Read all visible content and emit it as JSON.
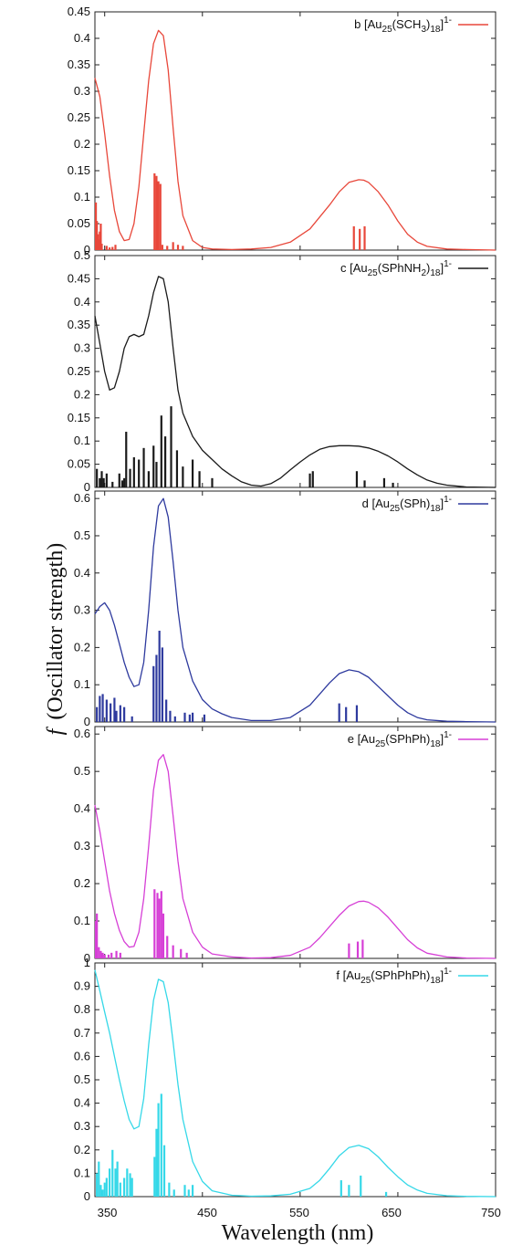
{
  "figure": {
    "ylabel_f": "f",
    "ylabel_rest": "(Oscillator strength)",
    "xlabel": "Wavelength (nm)",
    "x_ticks": [
      "350",
      "450",
      "550",
      "650",
      "750"
    ]
  },
  "chart_data": [
    {
      "type": "line",
      "panel": "b",
      "legend": {
        "letter": "b",
        "formula": [
          [
            "[Au",
            ""
          ],
          [
            "25",
            "sub"
          ],
          [
            "(SCH",
            ""
          ],
          [
            "3",
            "sub"
          ],
          [
            ")",
            ""
          ],
          [
            "18",
            "sub"
          ],
          [
            "]",
            ""
          ],
          [
            "1-",
            "sup"
          ]
        ]
      },
      "color": "#e8473a",
      "xlim": [
        340,
        750
      ],
      "ylim": [
        0,
        0.45
      ],
      "y_ticks": [
        "0",
        "0.05",
        "0.1",
        "0.15",
        "0.2",
        "0.25",
        "0.3",
        "0.35",
        "0.4",
        "0.45"
      ],
      "y_tick_values": [
        0,
        0.05,
        0.1,
        0.15,
        0.2,
        0.25,
        0.3,
        0.35,
        0.4,
        0.45
      ],
      "curve": {
        "x": [
          340,
          345,
          350,
          355,
          360,
          365,
          370,
          375,
          380,
          385,
          390,
          395,
          400,
          405,
          410,
          415,
          420,
          425,
          430,
          440,
          450,
          460,
          480,
          500,
          520,
          540,
          560,
          580,
          590,
          600,
          610,
          615,
          620,
          630,
          640,
          650,
          660,
          670,
          680,
          700,
          720,
          750
        ],
        "y": [
          0.325,
          0.29,
          0.22,
          0.14,
          0.075,
          0.035,
          0.018,
          0.02,
          0.05,
          0.12,
          0.22,
          0.32,
          0.39,
          0.415,
          0.405,
          0.34,
          0.23,
          0.13,
          0.065,
          0.018,
          0.005,
          0.002,
          0.001,
          0.002,
          0.005,
          0.015,
          0.04,
          0.085,
          0.11,
          0.128,
          0.133,
          0.132,
          0.128,
          0.11,
          0.085,
          0.055,
          0.03,
          0.015,
          0.007,
          0.002,
          0.001,
          0
        ]
      },
      "sticks": {
        "x": [
          341,
          342,
          343,
          344,
          345,
          346,
          347,
          352,
          355,
          358,
          361,
          401,
          403,
          405,
          407,
          409,
          414,
          420,
          425,
          430,
          605,
          611,
          616
        ],
        "y": [
          0.09,
          0.055,
          0.03,
          0.02,
          0.035,
          0.05,
          0.012,
          0.008,
          0.005,
          0.006,
          0.01,
          0.145,
          0.14,
          0.13,
          0.125,
          0.01,
          0.008,
          0.015,
          0.01,
          0.008,
          0.045,
          0.04,
          0.045
        ]
      }
    },
    {
      "type": "line",
      "panel": "c",
      "legend": {
        "letter": "c",
        "formula": [
          [
            "[Au",
            ""
          ],
          [
            "25",
            "sub"
          ],
          [
            "(SPhNH",
            ""
          ],
          [
            "2",
            "sub"
          ],
          [
            ")",
            ""
          ],
          [
            "18",
            "sub"
          ],
          [
            "]",
            ""
          ],
          [
            "1-",
            "sup"
          ]
        ]
      },
      "color": "#1a1a1a",
      "xlim": [
        340,
        750
      ],
      "ylim": [
        0,
        0.5
      ],
      "y_ticks": [
        "0",
        "0.05",
        "0.1",
        "0.15",
        "0.2",
        "0.25",
        "0.3",
        "0.35",
        "0.4",
        "0.45",
        "0.5"
      ],
      "y_tick_values": [
        0,
        0.05,
        0.1,
        0.15,
        0.2,
        0.25,
        0.3,
        0.35,
        0.4,
        0.45,
        0.5
      ],
      "curve": {
        "x": [
          340,
          345,
          350,
          355,
          360,
          365,
          370,
          375,
          380,
          385,
          390,
          395,
          400,
          405,
          410,
          415,
          420,
          425,
          430,
          440,
          450,
          460,
          470,
          480,
          490,
          500,
          510,
          520,
          530,
          540,
          550,
          560,
          570,
          580,
          590,
          600,
          610,
          620,
          630,
          640,
          650,
          660,
          670,
          680,
          690,
          700,
          720,
          750
        ],
        "y": [
          0.37,
          0.31,
          0.25,
          0.21,
          0.215,
          0.25,
          0.3,
          0.325,
          0.33,
          0.325,
          0.33,
          0.37,
          0.42,
          0.455,
          0.45,
          0.4,
          0.3,
          0.21,
          0.16,
          0.11,
          0.08,
          0.06,
          0.04,
          0.025,
          0.012,
          0.005,
          0.003,
          0.008,
          0.02,
          0.038,
          0.055,
          0.07,
          0.082,
          0.088,
          0.09,
          0.09,
          0.089,
          0.085,
          0.078,
          0.068,
          0.055,
          0.04,
          0.027,
          0.016,
          0.009,
          0.005,
          0.001,
          0
        ]
      },
      "sticks": {
        "x": [
          342,
          345,
          347,
          349,
          352,
          358,
          365,
          368,
          370,
          372,
          376,
          380,
          385,
          390,
          395,
          400,
          403,
          408,
          412,
          418,
          424,
          430,
          440,
          447,
          460,
          560,
          563,
          608,
          616,
          636,
          645
        ],
        "y": [
          0.04,
          0.02,
          0.035,
          0.02,
          0.03,
          0.012,
          0.03,
          0.015,
          0.02,
          0.12,
          0.04,
          0.065,
          0.06,
          0.085,
          0.035,
          0.09,
          0.055,
          0.155,
          0.11,
          0.175,
          0.08,
          0.045,
          0.06,
          0.035,
          0.02,
          0.03,
          0.035,
          0.035,
          0.015,
          0.02,
          0.01
        ]
      }
    },
    {
      "type": "line",
      "panel": "d",
      "legend": {
        "letter": "d",
        "formula": [
          [
            "[Au",
            ""
          ],
          [
            "25",
            "sub"
          ],
          [
            "(SPh)",
            ""
          ],
          [
            "18",
            "sub"
          ],
          [
            "]",
            ""
          ],
          [
            "1-",
            "sup"
          ]
        ]
      },
      "color": "#2e3a9e",
      "xlim": [
        340,
        750
      ],
      "ylim": [
        0,
        0.62
      ],
      "y_ticks": [
        "0",
        "0.1",
        "0.2",
        "0.3",
        "0.4",
        "0.5",
        "0.6"
      ],
      "y_tick_values": [
        0,
        0.1,
        0.2,
        0.3,
        0.4,
        0.5,
        0.6
      ],
      "curve": {
        "x": [
          340,
          345,
          350,
          355,
          360,
          365,
          370,
          375,
          380,
          385,
          390,
          395,
          400,
          405,
          410,
          415,
          420,
          425,
          430,
          440,
          450,
          460,
          470,
          480,
          500,
          520,
          540,
          560,
          570,
          580,
          590,
          600,
          610,
          620,
          630,
          640,
          650,
          660,
          670,
          680,
          700,
          720,
          750
        ],
        "y": [
          0.29,
          0.31,
          0.32,
          0.3,
          0.26,
          0.21,
          0.16,
          0.12,
          0.095,
          0.1,
          0.16,
          0.3,
          0.47,
          0.58,
          0.6,
          0.55,
          0.43,
          0.3,
          0.2,
          0.11,
          0.06,
          0.035,
          0.022,
          0.012,
          0.004,
          0.004,
          0.012,
          0.045,
          0.075,
          0.105,
          0.13,
          0.14,
          0.135,
          0.12,
          0.095,
          0.07,
          0.045,
          0.025,
          0.012,
          0.006,
          0.002,
          0.001,
          0
        ]
      },
      "sticks": {
        "x": [
          342,
          345,
          348,
          352,
          356,
          360,
          362,
          366,
          370,
          378,
          400,
          403,
          406,
          409,
          413,
          417,
          422,
          432,
          437,
          440,
          452,
          590,
          597,
          608
        ],
        "y": [
          0.04,
          0.07,
          0.075,
          0.06,
          0.05,
          0.065,
          0.03,
          0.045,
          0.04,
          0.015,
          0.15,
          0.18,
          0.245,
          0.2,
          0.06,
          0.03,
          0.015,
          0.025,
          0.02,
          0.025,
          0.02,
          0.05,
          0.04,
          0.045
        ]
      }
    },
    {
      "type": "line",
      "panel": "e",
      "legend": {
        "letter": "e",
        "formula": [
          [
            "[Au",
            ""
          ],
          [
            "25",
            "sub"
          ],
          [
            "(SPhPh)",
            ""
          ],
          [
            "18",
            "sub"
          ],
          [
            "]",
            ""
          ],
          [
            "1-",
            "sup"
          ]
        ]
      },
      "color": "#d63fd6",
      "xlim": [
        340,
        750
      ],
      "ylim": [
        0,
        0.62
      ],
      "y_ticks": [
        "0",
        "0.1",
        "0.2",
        "0.3",
        "0.4",
        "0.5",
        "0.6"
      ],
      "y_tick_values": [
        0,
        0.1,
        0.2,
        0.3,
        0.4,
        0.5,
        0.6
      ],
      "curve": {
        "x": [
          340,
          345,
          350,
          355,
          360,
          365,
          370,
          375,
          380,
          385,
          390,
          395,
          400,
          405,
          410,
          415,
          420,
          425,
          430,
          440,
          450,
          460,
          480,
          500,
          520,
          540,
          560,
          570,
          580,
          590,
          600,
          610,
          615,
          620,
          630,
          640,
          650,
          660,
          670,
          680,
          700,
          720,
          750
        ],
        "y": [
          0.41,
          0.34,
          0.26,
          0.18,
          0.12,
          0.075,
          0.045,
          0.03,
          0.032,
          0.07,
          0.16,
          0.3,
          0.45,
          0.53,
          0.545,
          0.5,
          0.38,
          0.26,
          0.16,
          0.07,
          0.03,
          0.012,
          0.004,
          0.001,
          0.002,
          0.008,
          0.03,
          0.055,
          0.085,
          0.115,
          0.14,
          0.152,
          0.153,
          0.15,
          0.135,
          0.11,
          0.08,
          0.05,
          0.028,
          0.014,
          0.004,
          0.001,
          0
        ]
      },
      "sticks": {
        "x": [
          341,
          342,
          344,
          346,
          348,
          350,
          354,
          357,
          362,
          366,
          401,
          404,
          406,
          408,
          410,
          414,
          420,
          428,
          434,
          600,
          609,
          614
        ],
        "y": [
          0.1,
          0.12,
          0.03,
          0.02,
          0.015,
          0.01,
          0.01,
          0.015,
          0.02,
          0.015,
          0.185,
          0.175,
          0.16,
          0.18,
          0.12,
          0.06,
          0.035,
          0.025,
          0.015,
          0.04,
          0.045,
          0.05
        ]
      }
    },
    {
      "type": "line",
      "panel": "f",
      "legend": {
        "letter": "f",
        "formula": [
          [
            "[Au",
            ""
          ],
          [
            "25",
            "sub"
          ],
          [
            "(SPhPhPh)",
            ""
          ],
          [
            "18",
            "sub"
          ],
          [
            "]",
            ""
          ],
          [
            "1-",
            "sup"
          ]
        ]
      },
      "color": "#35d8e8",
      "xlim": [
        340,
        750
      ],
      "ylim": [
        0,
        1.0
      ],
      "y_ticks": [
        "0",
        "0.1",
        "0.2",
        "0.3",
        "0.4",
        "0.5",
        "0.6",
        "0.7",
        "0.8",
        "0.9",
        "1"
      ],
      "y_tick_values": [
        0,
        0.1,
        0.2,
        0.3,
        0.4,
        0.5,
        0.6,
        0.7,
        0.8,
        0.9,
        1.0
      ],
      "curve": {
        "x": [
          340,
          345,
          350,
          355,
          360,
          365,
          370,
          375,
          380,
          385,
          390,
          395,
          400,
          405,
          410,
          415,
          420,
          425,
          430,
          440,
          450,
          460,
          480,
          500,
          520,
          540,
          560,
          570,
          580,
          590,
          600,
          610,
          620,
          630,
          640,
          650,
          660,
          670,
          680,
          700,
          720,
          750
        ],
        "y": [
          0.97,
          0.88,
          0.79,
          0.7,
          0.6,
          0.5,
          0.41,
          0.33,
          0.29,
          0.3,
          0.42,
          0.65,
          0.84,
          0.93,
          0.92,
          0.83,
          0.66,
          0.48,
          0.33,
          0.15,
          0.065,
          0.025,
          0.006,
          0.002,
          0.003,
          0.01,
          0.035,
          0.07,
          0.12,
          0.175,
          0.21,
          0.22,
          0.205,
          0.17,
          0.125,
          0.085,
          0.05,
          0.028,
          0.014,
          0.004,
          0.001,
          0
        ]
      },
      "sticks": {
        "x": [
          342,
          344,
          346,
          348,
          350,
          352,
          355,
          358,
          361,
          363,
          366,
          370,
          373,
          376,
          378,
          401,
          403,
          405,
          408,
          411,
          416,
          421,
          432,
          436,
          440,
          592,
          600,
          612,
          638
        ],
        "y": [
          0.1,
          0.15,
          0.05,
          0.03,
          0.06,
          0.08,
          0.12,
          0.2,
          0.12,
          0.15,
          0.06,
          0.08,
          0.12,
          0.1,
          0.08,
          0.17,
          0.29,
          0.4,
          0.44,
          0.22,
          0.06,
          0.03,
          0.05,
          0.03,
          0.05,
          0.07,
          0.05,
          0.09,
          0.02
        ]
      }
    }
  ]
}
